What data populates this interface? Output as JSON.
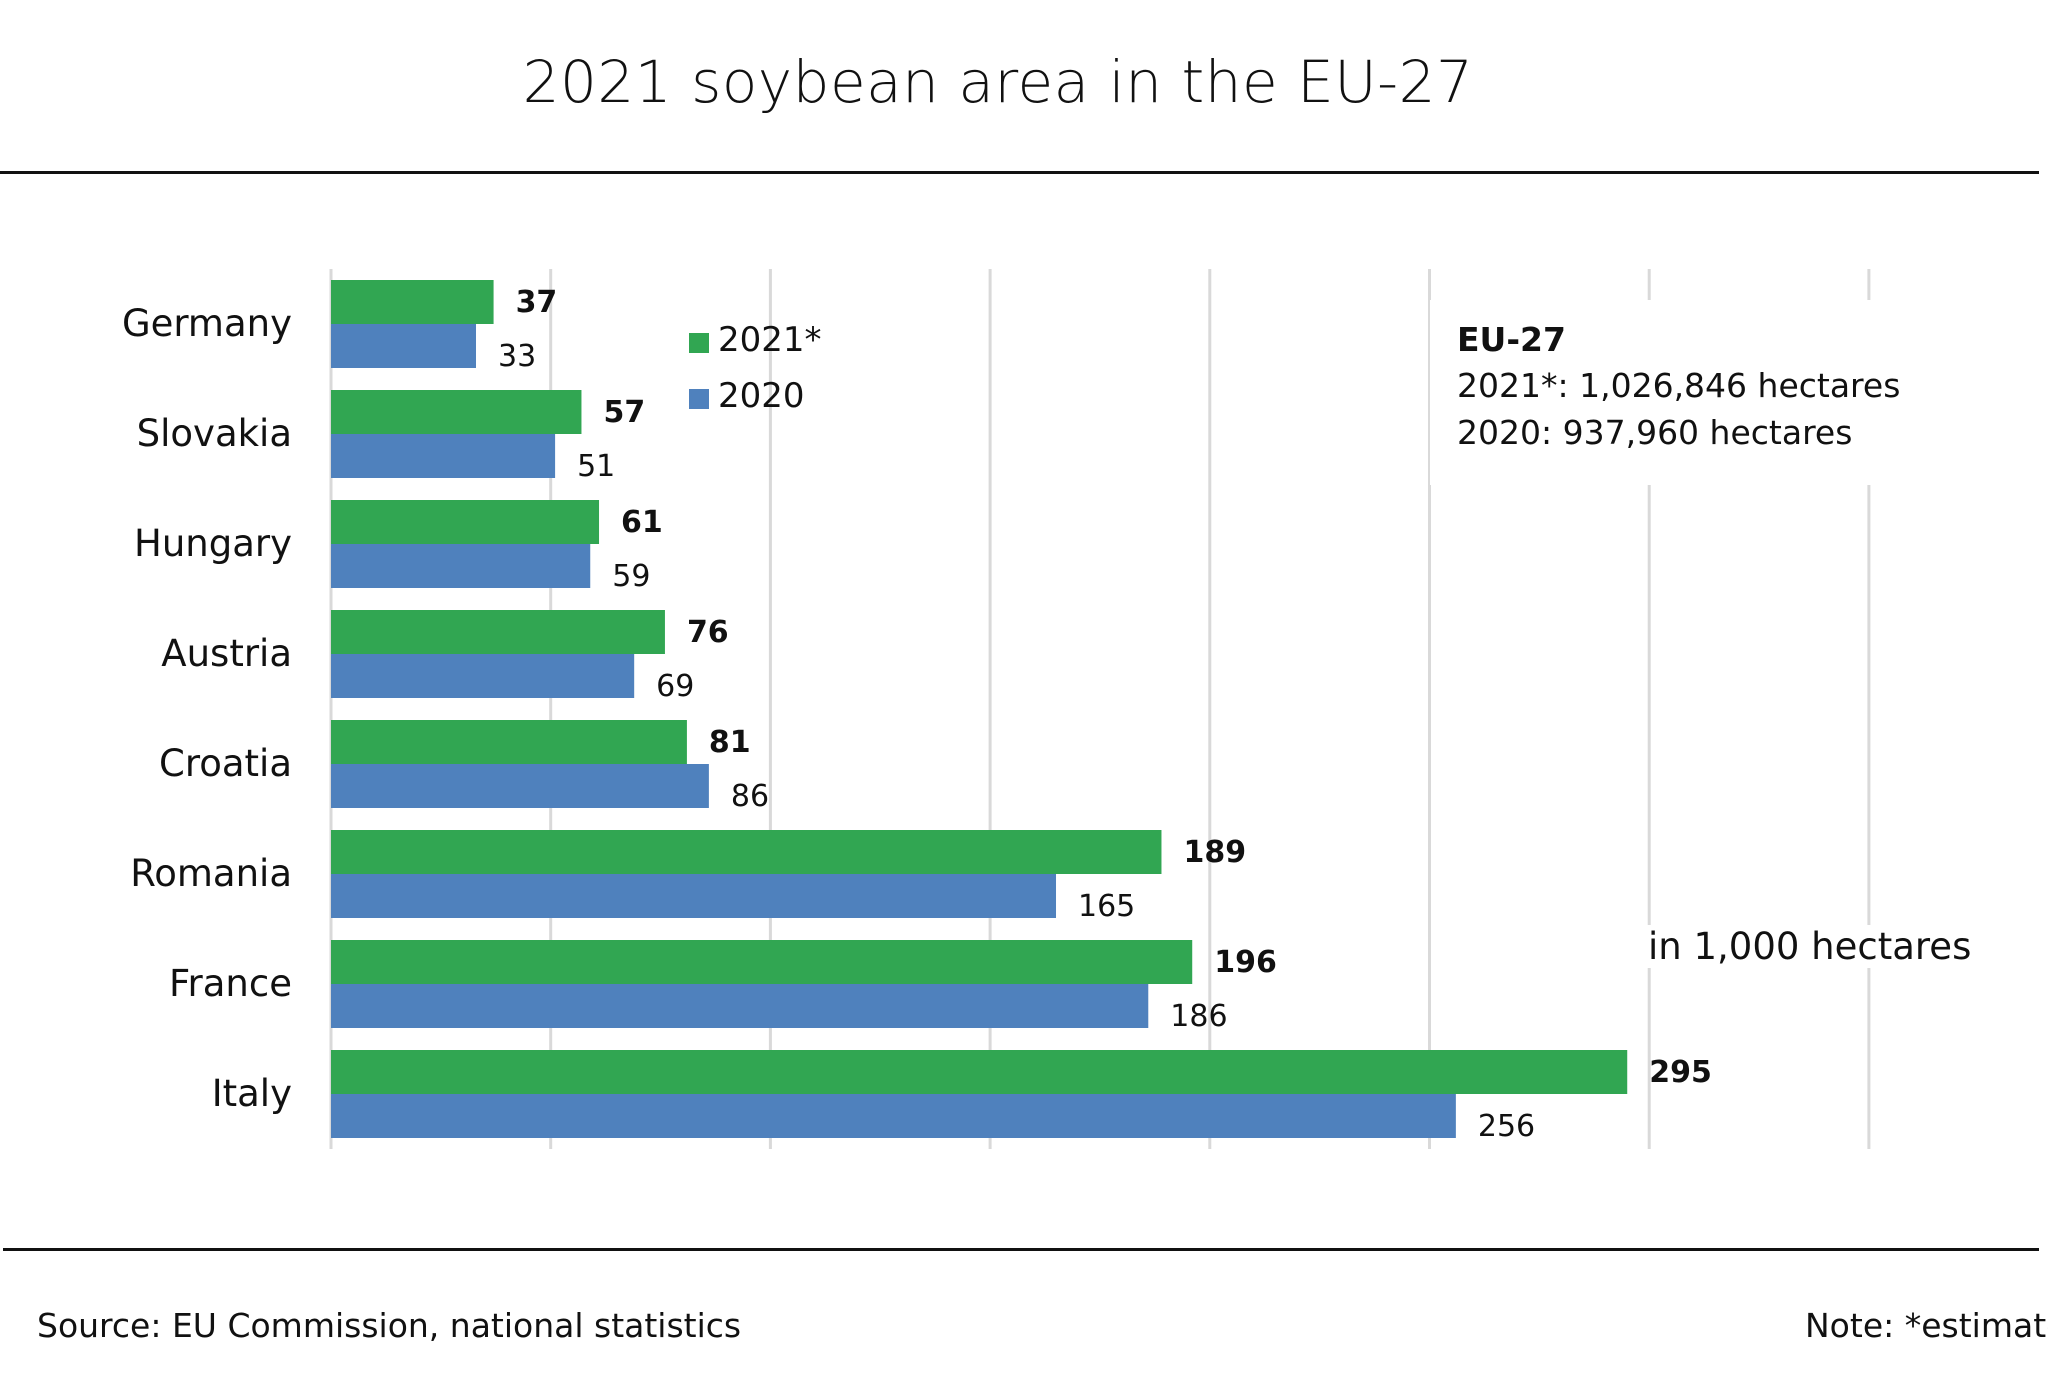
{
  "chart_data": {
    "type": "bar",
    "orientation": "horizontal",
    "title": "2021 soybean area in the EU-27",
    "categories": [
      "Germany",
      "Slovakia",
      "Hungary",
      "Austria",
      "Croatia",
      "Romania",
      "France",
      "Italy"
    ],
    "series": [
      {
        "name": "2021*",
        "color": "#31a652",
        "values": [
          37,
          57,
          61,
          76,
          81,
          189,
          196,
          295
        ]
      },
      {
        "name": "2020",
        "color": "#4f81bd",
        "values": [
          33,
          51,
          59,
          69,
          86,
          165,
          186,
          256
        ]
      }
    ],
    "xlim": [
      0,
      350
    ],
    "xticks": [
      0,
      50,
      100,
      150,
      200,
      250,
      300,
      350
    ],
    "grid": true,
    "legend_position": "top-left",
    "unit_label": "in 1,000 hectares",
    "annotation": {
      "heading": "EU-27",
      "line1": "2021*: 1,026,846 hectares",
      "line2": "2020: 937,960 hectares"
    }
  },
  "footer": {
    "source": "Source:  EU Commission, national statistics",
    "note": "Note: *estimate"
  }
}
